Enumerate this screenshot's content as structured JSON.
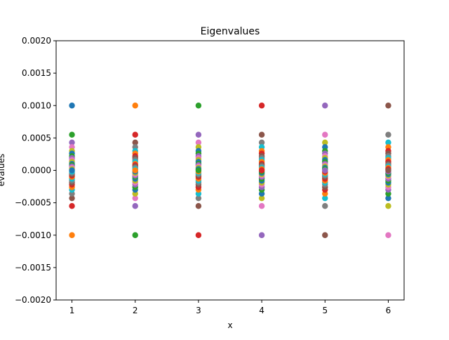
{
  "chart_data": {
    "type": "scatter",
    "title": "Eigenvalues",
    "xlabel": "x",
    "ylabel": "evalues",
    "xlim": [
      0.75,
      6.25
    ],
    "ylim": [
      -0.002,
      0.002
    ],
    "xticks": [
      1,
      2,
      3,
      4,
      5,
      6
    ],
    "yticks": [
      -0.002,
      -0.0015,
      -0.001,
      -0.0005,
      0.0,
      0.0005,
      0.001,
      0.0015,
      0.002
    ],
    "ytick_labels": [
      "−0.0020",
      "−0.0015",
      "−0.0010",
      "−0.0005",
      "0.0000",
      "0.0005",
      "0.0010",
      "0.0015",
      "0.0020"
    ],
    "grid": false,
    "palette": [
      "#1f77b4",
      "#ff7f0e",
      "#2ca02c",
      "#d62728",
      "#9467bd",
      "#8c564b",
      "#e377c2",
      "#7f7f7f",
      "#bcbd22",
      "#17becf"
    ],
    "series": [
      {
        "x": 1,
        "values": [
          0.001,
          -0.001,
          0.00055,
          -0.00055,
          0.00043,
          -0.00043,
          0.00036,
          -0.00036,
          0.0003,
          -0.0003,
          0.00026,
          -0.00026,
          0.00022,
          -0.00022,
          0.00019,
          -0.00019,
          0.00016,
          -0.00016,
          0.00013,
          -0.00013,
          0.0001,
          -0.0001,
          8e-05,
          -8e-05,
          6e-05,
          -6e-05,
          4e-05,
          -4e-05,
          2e-05,
          -2e-05,
          0.0
        ]
      },
      {
        "x": 2,
        "values": [
          0.001,
          -0.001,
          0.00055,
          -0.00055,
          0.00043,
          -0.00043,
          0.00036,
          -0.00036,
          0.0003,
          -0.0003,
          0.00026,
          -0.00026,
          0.00022,
          -0.00022,
          0.00019,
          -0.00019,
          0.00016,
          -0.00016,
          0.00013,
          -0.00013,
          0.0001,
          -0.0001,
          8e-05,
          -8e-05,
          6e-05,
          -6e-05,
          4e-05,
          -4e-05,
          2e-05,
          -2e-05,
          0.0
        ]
      },
      {
        "x": 3,
        "values": [
          0.001,
          -0.001,
          0.00055,
          -0.00055,
          0.00043,
          -0.00043,
          0.00036,
          -0.00036,
          0.0003,
          -0.0003,
          0.00026,
          -0.00026,
          0.00022,
          -0.00022,
          0.00019,
          -0.00019,
          0.00016,
          -0.00016,
          0.00013,
          -0.00013,
          0.0001,
          -0.0001,
          8e-05,
          -8e-05,
          6e-05,
          -6e-05,
          4e-05,
          -4e-05,
          2e-05,
          -2e-05,
          0.0
        ]
      },
      {
        "x": 4,
        "values": [
          0.001,
          -0.001,
          0.00055,
          -0.00055,
          0.00043,
          -0.00043,
          0.00036,
          -0.00036,
          0.0003,
          -0.0003,
          0.00026,
          -0.00026,
          0.00022,
          -0.00022,
          0.00019,
          -0.00019,
          0.00016,
          -0.00016,
          0.00013,
          -0.00013,
          0.0001,
          -0.0001,
          8e-05,
          -8e-05,
          6e-05,
          -6e-05,
          4e-05,
          -4e-05,
          2e-05,
          -2e-05,
          0.0
        ]
      },
      {
        "x": 5,
        "values": [
          0.001,
          -0.001,
          0.00055,
          -0.00055,
          0.00043,
          -0.00043,
          0.00036,
          -0.00036,
          0.0003,
          -0.0003,
          0.00026,
          -0.00026,
          0.00022,
          -0.00022,
          0.00019,
          -0.00019,
          0.00016,
          -0.00016,
          0.00013,
          -0.00013,
          0.0001,
          -0.0001,
          8e-05,
          -8e-05,
          6e-05,
          -6e-05,
          4e-05,
          -4e-05,
          2e-05,
          -2e-05,
          0.0
        ]
      },
      {
        "x": 6,
        "values": [
          0.001,
          -0.001,
          0.00055,
          -0.00055,
          0.00043,
          -0.00043,
          0.00036,
          -0.00036,
          0.0003,
          -0.0003,
          0.00026,
          -0.00026,
          0.00022,
          -0.00022,
          0.00019,
          -0.00019,
          0.00016,
          -0.00016,
          0.00013,
          -0.00013,
          0.0001,
          -0.0001,
          8e-05,
          -8e-05,
          6e-05,
          -6e-05,
          4e-05,
          -4e-05,
          2e-05,
          -2e-05,
          0.0
        ]
      }
    ]
  }
}
